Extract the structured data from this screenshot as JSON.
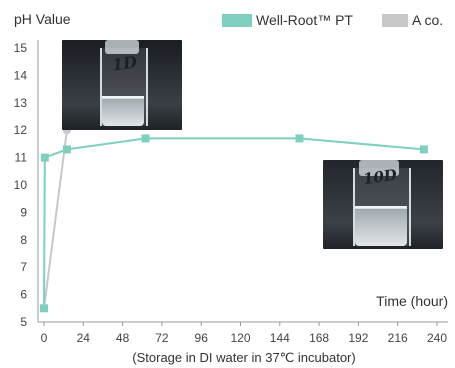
{
  "chart_data": {
    "type": "line",
    "ylabel": "pH Value",
    "xlabel": "Time (hour)",
    "subtitle": "(Storage in DI water in 37℃ incubator)",
    "x_ticks": [
      0,
      24,
      48,
      72,
      96,
      120,
      144,
      168,
      192,
      216,
      240
    ],
    "y_ticks": [
      5,
      6,
      7,
      8,
      9,
      10,
      11,
      12,
      13,
      14,
      15
    ],
    "xlim": [
      0,
      240
    ],
    "ylim": [
      5,
      15
    ],
    "grid": false,
    "legend_position": "top-right",
    "series": [
      {
        "name": "Well-Root™ PT",
        "color": "#7fcfc1",
        "marker": "square",
        "x": [
          0,
          0.5,
          14,
          62,
          156,
          232
        ],
        "y": [
          5.5,
          11.0,
          11.3,
          11.7,
          11.7,
          11.3
        ]
      },
      {
        "name": "A co.",
        "color": "#c8c8c8",
        "marker": "circle",
        "x": [
          0,
          14
        ],
        "y": [
          5.5,
          12.0
        ]
      }
    ],
    "photo_labels": [
      "1D",
      "10D"
    ]
  }
}
